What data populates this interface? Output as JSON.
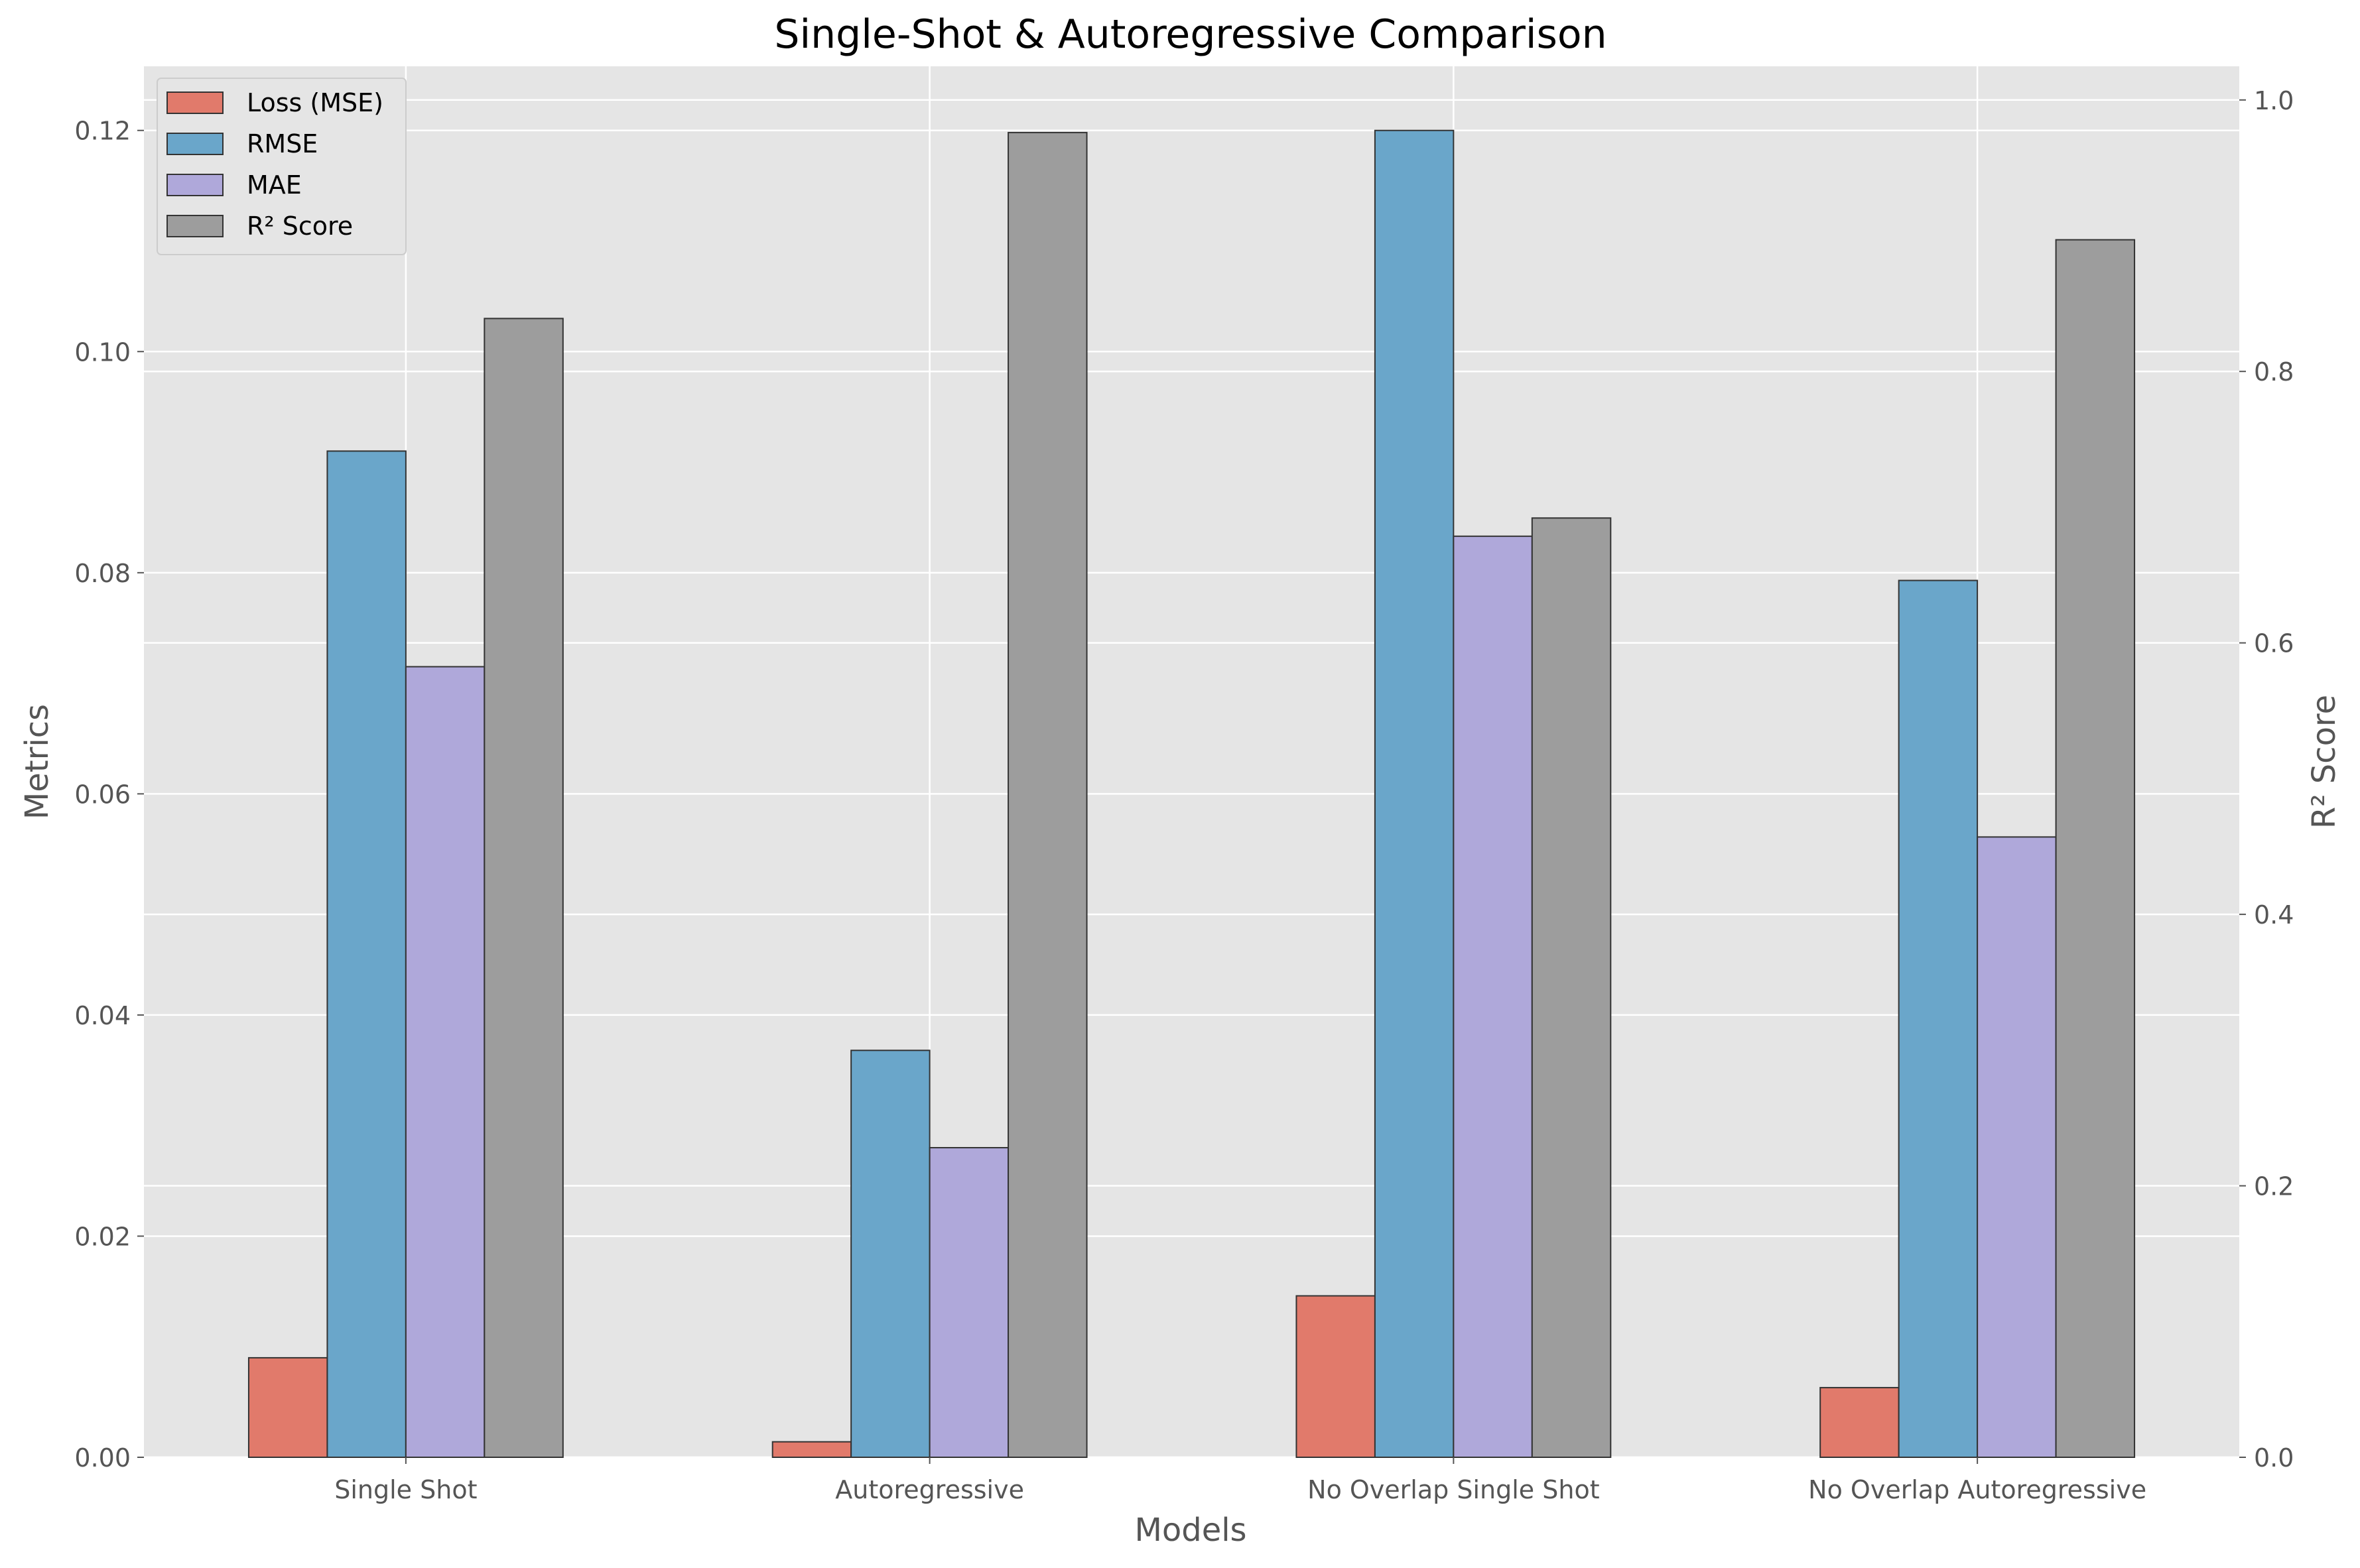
{
  "chart_data": {
    "type": "bar",
    "title": "Single-Shot & Autoregressive Comparison",
    "xlabel": "Models",
    "ylabel": "Metrics",
    "ylabel_right": "R² Score",
    "categories": [
      "Single Shot",
      "Autoregressive",
      "No Overlap Single Shot",
      "No Overlap Autoregressive"
    ],
    "ylim": [
      0,
      0.1258
    ],
    "ylim_right": [
      0,
      1.0248
    ],
    "yticks": [
      "0.00",
      "0.02",
      "0.04",
      "0.06",
      "0.08",
      "0.10",
      "0.12"
    ],
    "yticks_right": [
      "0.0",
      "0.2",
      "0.4",
      "0.6",
      "0.8",
      "1.0"
    ],
    "grid": true,
    "legend_position": "upper-left",
    "series": [
      {
        "name": "Loss (MSE)",
        "axis": "left",
        "color": "#e17a6b",
        "values": [
          0.009,
          0.0014,
          0.0146,
          0.0063
        ]
      },
      {
        "name": "RMSE",
        "axis": "left",
        "color": "#6aa6ca",
        "values": [
          0.091,
          0.0368,
          0.12,
          0.0793
        ]
      },
      {
        "name": "MAE",
        "axis": "left",
        "color": "#afa8da",
        "values": [
          0.0715,
          0.028,
          0.0833,
          0.0561
        ]
      },
      {
        "name": "R² Score",
        "axis": "right",
        "color": "#9d9d9d",
        "values": [
          0.839,
          0.976,
          0.692,
          0.897
        ]
      }
    ]
  }
}
